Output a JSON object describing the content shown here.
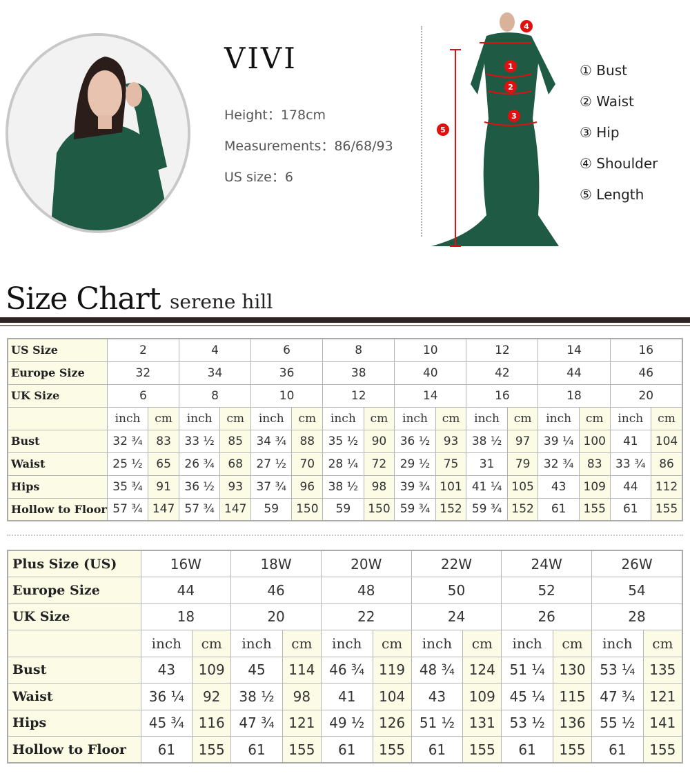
{
  "model": {
    "name": "VIVI",
    "height_label": "Height：",
    "height": "178cm",
    "measurements_label": "Measurements：",
    "measurements": "86/68/93",
    "us_size_label": "US size：",
    "us_size": "6"
  },
  "measure_legend": [
    {
      "num": "①",
      "label": "Bust"
    },
    {
      "num": "②",
      "label": "Waist"
    },
    {
      "num": "③",
      "label": "Hip"
    },
    {
      "num": "④",
      "label": "Shoulder"
    },
    {
      "num": "⑤",
      "label": "Length"
    }
  ],
  "diagram_markers": [
    "1",
    "2",
    "3",
    "4",
    "5"
  ],
  "size_chart": {
    "title": "Size Chart",
    "brand": "serene hill"
  },
  "colors": {
    "marker_red": "#e01010",
    "dress_green": "#1f5a45",
    "cell_yellow": "#fbfbe6"
  },
  "standard_table": {
    "header_rows": [
      {
        "label": "US Size",
        "values": [
          "2",
          "4",
          "6",
          "8",
          "10",
          "12",
          "14",
          "16"
        ]
      },
      {
        "label": "Europe Size",
        "values": [
          "32",
          "34",
          "36",
          "38",
          "40",
          "42",
          "44",
          "46"
        ]
      },
      {
        "label": "UK Size",
        "values": [
          "6",
          "8",
          "10",
          "12",
          "14",
          "16",
          "18",
          "20"
        ]
      }
    ],
    "units": [
      "inch",
      "cm"
    ],
    "rows": [
      {
        "label": "Bust",
        "values": [
          "32 ¾",
          "83",
          "33 ½",
          "85",
          "34 ¾",
          "88",
          "35 ½",
          "90",
          "36 ½",
          "93",
          "38 ½",
          "97",
          "39 ¼",
          "100",
          "41",
          "104"
        ]
      },
      {
        "label": "Waist",
        "values": [
          "25 ½",
          "65",
          "26 ¾",
          "68",
          "27 ½",
          "70",
          "28 ¼",
          "72",
          "29 ½",
          "75",
          "31",
          "79",
          "32 ¾",
          "83",
          "33 ¾",
          "86"
        ]
      },
      {
        "label": "Hips",
        "values": [
          "35 ¾",
          "91",
          "36 ½",
          "93",
          "37 ¾",
          "96",
          "38 ½",
          "98",
          "39 ¾",
          "101",
          "41 ¼",
          "105",
          "43",
          "109",
          "44",
          "112"
        ]
      },
      {
        "label": "Hollow to Floor",
        "values": [
          "57 ¾",
          "147",
          "57 ¾",
          "147",
          "59",
          "150",
          "59",
          "150",
          "59 ¾",
          "152",
          "59 ¾",
          "152",
          "61",
          "155",
          "61",
          "155"
        ]
      }
    ]
  },
  "plus_table": {
    "header_rows": [
      {
        "label": "Plus Size (US)",
        "values": [
          "16W",
          "18W",
          "20W",
          "22W",
          "24W",
          "26W"
        ]
      },
      {
        "label": "Europe Size",
        "values": [
          "44",
          "46",
          "48",
          "50",
          "52",
          "54"
        ]
      },
      {
        "label": "UK Size",
        "values": [
          "18",
          "20",
          "22",
          "24",
          "26",
          "28"
        ]
      }
    ],
    "units": [
      "inch",
      "cm"
    ],
    "rows": [
      {
        "label": "Bust",
        "values": [
          "43",
          "109",
          "45",
          "114",
          "46 ¾",
          "119",
          "48 ¾",
          "124",
          "51 ¼",
          "130",
          "53 ¼",
          "135"
        ]
      },
      {
        "label": "Waist",
        "values": [
          "36 ¼",
          "92",
          "38 ½",
          "98",
          "41",
          "104",
          "43",
          "109",
          "45 ¼",
          "115",
          "47 ¾",
          "121"
        ]
      },
      {
        "label": "Hips",
        "values": [
          "45 ¾",
          "116",
          "47 ¾",
          "121",
          "49 ½",
          "126",
          "51 ½",
          "131",
          "53 ½",
          "136",
          "55 ½",
          "141"
        ]
      },
      {
        "label": "Hollow to Floor",
        "values": [
          "61",
          "155",
          "61",
          "155",
          "61",
          "155",
          "61",
          "155",
          "61",
          "155",
          "61",
          "155"
        ]
      }
    ]
  }
}
